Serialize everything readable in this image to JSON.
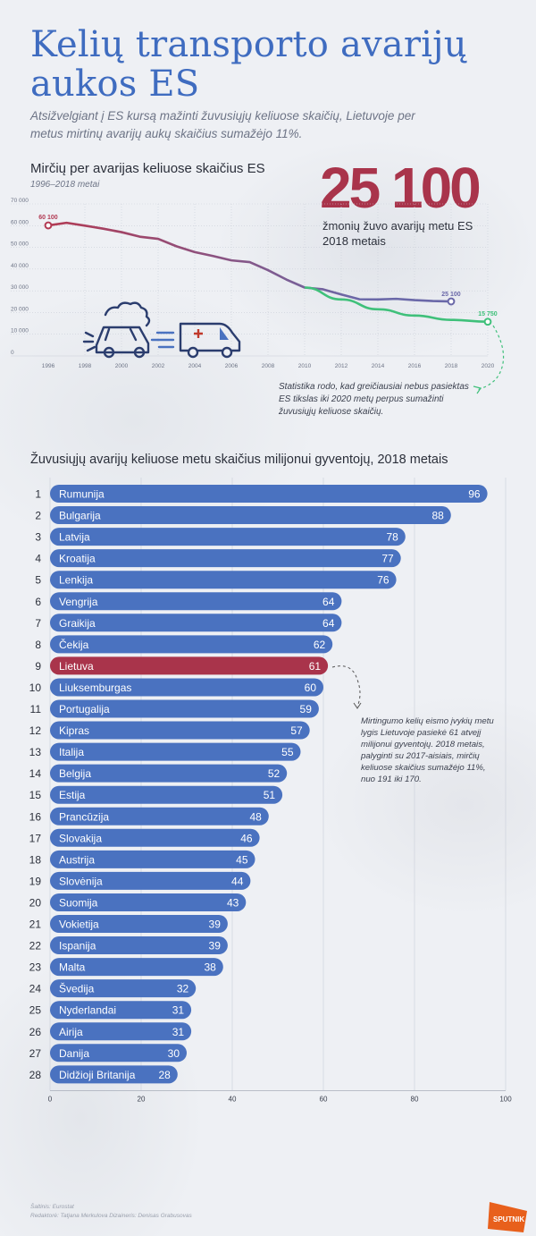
{
  "title": "Kelių transporto avarijų aukos ES",
  "subtitle": "Atsižvelgiant į ES kursą mažinti žuvusiųjų keliuose skaičių, Lietuvoje per metus mirtinų avarijų aukų skaičius sumažėjo 11%.",
  "line_section": {
    "heading": "Mirčių per avarijas keliuose skaičius ES",
    "subheading": "1996–2018 metai",
    "big_number": "25 100",
    "big_caption": "žmonių žuvo avarijų metu ES 2018 metais",
    "note": "Statistika rodo, kad greičiausiai nebus pasiektas ES tikslas iki 2020 metų perpus sumažinti žuvusiųjų keliuose skaičių.",
    "label_start": "60 100",
    "label_end": "25 100",
    "label_target": "15 750"
  },
  "bar_section": {
    "heading": "Žuvusiųjų avarijų keliuose metu skaičius milijonui gyventojų, 2018 metais",
    "note": "Mirtingumo kelių eismo įvykių metu lygis Lietuvoje pasiekė 61 atvejį milijonui gyventojų. 2018 metais, palyginti su 2017-aisiais, mirčių keliuose skaičius sumažėjo 11%, nuo 191 iki 170."
  },
  "footer": {
    "source": "Šaltinis: Eurostat",
    "credits": "Redaktorė: Tatjana Merkulova Dizaineris: Denisas Grabusovas",
    "logo": "SPUTNIK"
  },
  "colors": {
    "bar": "#4a72c0",
    "highlight": "#a9344b",
    "actual": "#6a68a8",
    "target": "#3fc07a",
    "early_line": "#b23a53"
  },
  "chart_data": [
    {
      "type": "line",
      "title": "Mirčių per avarijas keliuose skaičius ES",
      "subtitle": "1996–2018 metai",
      "xlabel": "",
      "ylabel": "",
      "ylim": [
        0,
        70000
      ],
      "xlim": [
        1996,
        2020
      ],
      "y_ticks": [
        "0",
        "10 000",
        "20 000",
        "30 000",
        "40 000",
        "50 000",
        "60 000",
        "70 000"
      ],
      "x_ticks": [
        "1996",
        "1998",
        "2000",
        "2002",
        "2004",
        "2006",
        "2008",
        "2010",
        "2012",
        "2014",
        "2016",
        "2018",
        "2020"
      ],
      "series": [
        {
          "x": [
            1996,
            1997,
            1998,
            1999,
            2000,
            2001,
            2002,
            2003,
            2004,
            2005,
            2006,
            2007,
            2008,
            2009,
            2010,
            2011,
            2012,
            2013,
            2014,
            2015,
            2016,
            2017,
            2018
          ],
          "values": [
            60100,
            61300,
            60000,
            58600,
            57000,
            54900,
            53900,
            50500,
            47800,
            46000,
            44000,
            43200,
            39500,
            35200,
            31500,
            30700,
            28300,
            26100,
            26000,
            26300,
            25700,
            25300,
            25100
          ]
        },
        {
          "x": [
            2010,
            2012,
            2014,
            2016,
            2018,
            2020
          ],
          "values": [
            31500,
            26000,
            21500,
            18600,
            16600,
            15750
          ]
        }
      ]
    },
    {
      "type": "bar",
      "title": "Žuvusiųjų avarijų keliuose metu skaičius milijonui gyventojų, 2018 metais",
      "orientation": "horizontal",
      "xlim": [
        0,
        100
      ],
      "x_ticks": [
        "0",
        "20",
        "40",
        "60",
        "80",
        "100"
      ],
      "highlight": "Lietuva",
      "ranks": [
        "1",
        "2",
        "3",
        "4",
        "5",
        "6",
        "7",
        "8",
        "9",
        "10",
        "11",
        "12",
        "13",
        "14",
        "15",
        "16",
        "17",
        "18",
        "19",
        "20",
        "21",
        "22",
        "23",
        "24",
        "25",
        "26",
        "27",
        "28"
      ],
      "categories": [
        "Rumunija",
        "Bulgarija",
        "Latvija",
        "Kroatija",
        "Lenkija",
        "Vengrija",
        "Graikija",
        "Čekija",
        "Lietuva",
        "Liuksemburgas",
        "Portugalija",
        "Kipras",
        "Italija",
        "Belgija",
        "Estija",
        "Prancūzija",
        "Slovakija",
        "Austrija",
        "Slovėnija",
        "Suomija",
        "Vokietija",
        "Ispanija",
        "Malta",
        "Švedija",
        "Nyderlandai",
        "Airija",
        "Danija",
        "Didžioji Britanija"
      ],
      "values": [
        96,
        88,
        78,
        77,
        76,
        64,
        64,
        62,
        61,
        60,
        59,
        57,
        55,
        52,
        51,
        48,
        46,
        45,
        44,
        43,
        39,
        39,
        38,
        32,
        31,
        31,
        30,
        28
      ]
    }
  ]
}
